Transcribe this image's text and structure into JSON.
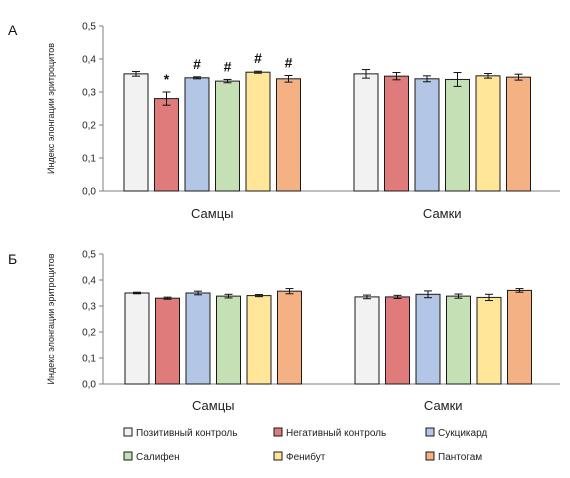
{
  "chart_data": [
    {
      "panel_label": "А",
      "type": "bar",
      "ylabel": "Индекс элонгации эритроцитов",
      "ylim": [
        0,
        0.5
      ],
      "yticks": [
        "0,0",
        "0,1",
        "0,2",
        "0,3",
        "0,4",
        "0,5"
      ],
      "categories": [
        "Самцы",
        "Самки"
      ],
      "series": [
        {
          "name": "Позитивный контроль",
          "color": "#f2f2f2",
          "values": [
            0.355,
            0.355
          ],
          "errors": [
            0.007,
            0.013
          ],
          "marks": [
            "",
            ""
          ]
        },
        {
          "name": "Негативный контроль",
          "color": "#df7b7b",
          "values": [
            0.28,
            0.348
          ],
          "errors": [
            0.02,
            0.011
          ],
          "marks": [
            "*",
            ""
          ]
        },
        {
          "name": "Сукцикард",
          "color": "#b3c6e6",
          "values": [
            0.343,
            0.34
          ],
          "errors": [
            0.003,
            0.009
          ],
          "marks": [
            "#",
            ""
          ]
        },
        {
          "name": "Салифен",
          "color": "#c5e0b4",
          "values": [
            0.333,
            0.338
          ],
          "errors": [
            0.005,
            0.021
          ],
          "marks": [
            "#",
            ""
          ]
        },
        {
          "name": "Фенибут",
          "color": "#ffe699",
          "values": [
            0.36,
            0.349
          ],
          "errors": [
            0.003,
            0.007
          ],
          "marks": [
            "#",
            ""
          ]
        },
        {
          "name": "Пантогам",
          "color": "#f4b183",
          "values": [
            0.34,
            0.345
          ],
          "errors": [
            0.01,
            0.009
          ],
          "marks": [
            "#",
            ""
          ]
        }
      ]
    },
    {
      "panel_label": "Б",
      "type": "bar",
      "ylabel": "Индекс элонгации эритроцитов",
      "ylim": [
        0,
        0.5
      ],
      "yticks": [
        "0,0",
        "0,1",
        "0,2",
        "0,3",
        "0,4",
        "0,5"
      ],
      "categories": [
        "Самцы",
        "Самки"
      ],
      "series": [
        {
          "name": "Позитивный контроль",
          "color": "#f2f2f2",
          "values": [
            0.35,
            0.335
          ],
          "errors": [
            0.003,
            0.007
          ],
          "marks": [
            "",
            ""
          ]
        },
        {
          "name": "Негативный контроль",
          "color": "#df7b7b",
          "values": [
            0.33,
            0.335
          ],
          "errors": [
            0.004,
            0.006
          ],
          "marks": [
            "",
            ""
          ]
        },
        {
          "name": "Сукцикард",
          "color": "#b3c6e6",
          "values": [
            0.35,
            0.345
          ],
          "errors": [
            0.007,
            0.013
          ],
          "marks": [
            "",
            ""
          ]
        },
        {
          "name": "Салифен",
          "color": "#c5e0b4",
          "values": [
            0.338,
            0.338
          ],
          "errors": [
            0.007,
            0.008
          ],
          "marks": [
            "",
            ""
          ]
        },
        {
          "name": "Фенибут",
          "color": "#ffe699",
          "values": [
            0.34,
            0.333
          ],
          "errors": [
            0.004,
            0.012
          ],
          "marks": [
            "",
            ""
          ]
        },
        {
          "name": "Пантогам",
          "color": "#f4b183",
          "values": [
            0.357,
            0.36
          ],
          "errors": [
            0.01,
            0.007
          ],
          "marks": [
            "",
            ""
          ]
        }
      ]
    }
  ],
  "legend": {
    "placement": "bottom",
    "items": [
      {
        "label": "Позитивный контроль",
        "color": "#f2f2f2"
      },
      {
        "label": "Негативный контроль",
        "color": "#df7b7b"
      },
      {
        "label": "Сукцикард",
        "color": "#b3c6e6"
      },
      {
        "label": "Салифен",
        "color": "#c5e0b4"
      },
      {
        "label": "Фенибут",
        "color": "#ffe699"
      },
      {
        "label": "Пантогам",
        "color": "#f4b183"
      }
    ]
  }
}
